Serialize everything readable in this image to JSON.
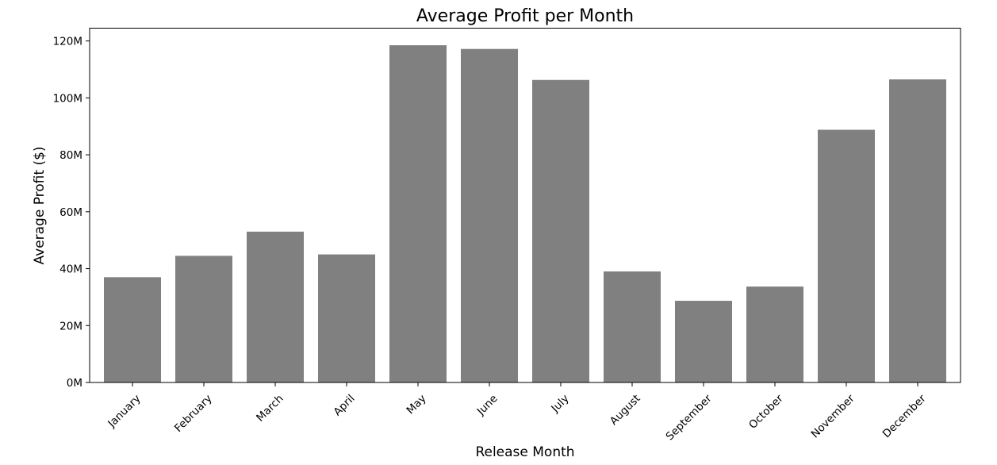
{
  "chart_data": {
    "type": "bar",
    "title": "Average Profit per Month",
    "xlabel": "Release Month",
    "ylabel": "Average Profit ($)",
    "categories": [
      "January",
      "February",
      "March",
      "April",
      "May",
      "June",
      "July",
      "August",
      "September",
      "October",
      "November",
      "December"
    ],
    "values": [
      37000000,
      44500000,
      53000000,
      45000000,
      118500000,
      117200000,
      106300000,
      39000000,
      28700000,
      33700000,
      88800000,
      106500000
    ],
    "ylim": [
      0,
      124500000
    ],
    "yticks": [
      0,
      20000000,
      40000000,
      60000000,
      80000000,
      100000000,
      120000000
    ],
    "ytick_labels": [
      "0M",
      "20M",
      "40M",
      "60M",
      "80M",
      "100M",
      "120M"
    ],
    "bar_color": "#808080",
    "grid": false,
    "legend": "none"
  }
}
